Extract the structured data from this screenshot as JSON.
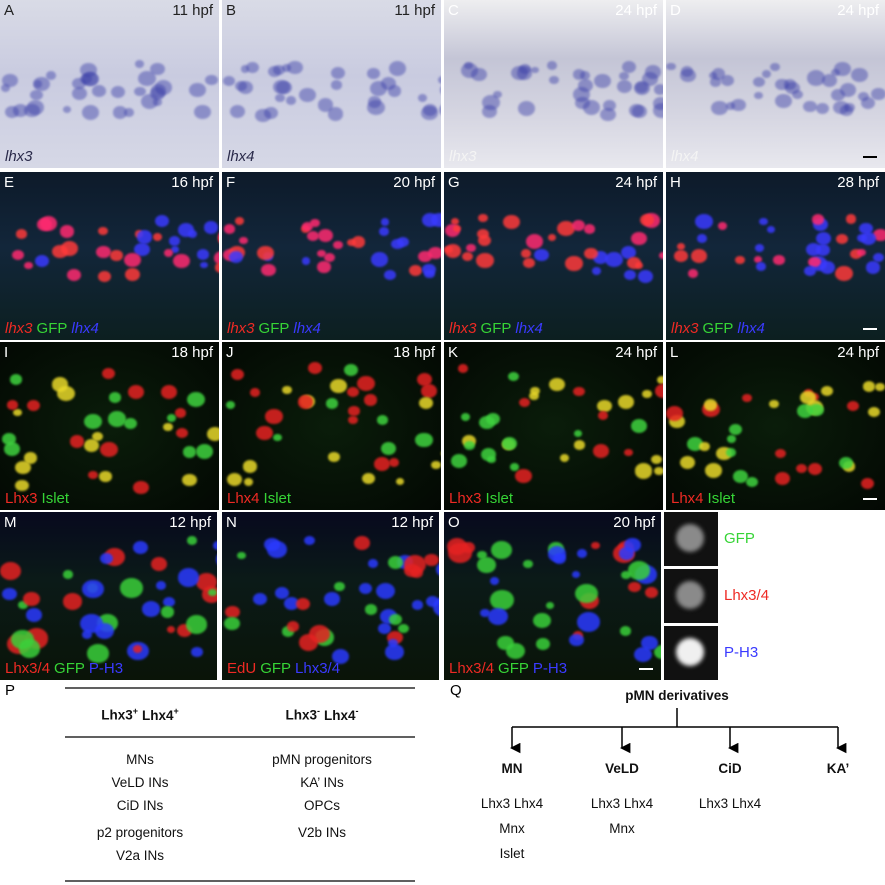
{
  "panels": [
    {
      "letter": "A",
      "time": "11 hpf",
      "caption": [
        {
          "text": "lhx3",
          "color": "dark",
          "italic": true
        }
      ]
    },
    {
      "letter": "B",
      "time": "11 hpf",
      "caption": [
        {
          "text": "lhx4",
          "color": "dark",
          "italic": true
        }
      ]
    },
    {
      "letter": "C",
      "time": "24 hpf",
      "caption": [
        {
          "text": "lhx3",
          "color": "light",
          "italic": true
        }
      ]
    },
    {
      "letter": "D",
      "time": "24 hpf",
      "caption": [
        {
          "text": "lhx4",
          "color": "light",
          "italic": true
        }
      ],
      "scale_bar": true
    },
    {
      "letter": "E",
      "time": "16 hpf",
      "caption": [
        {
          "text": "lhx3",
          "color": "red",
          "italic": true
        },
        {
          "text": "GFP",
          "color": "green",
          "italic": false
        },
        {
          "text": "lhx4",
          "color": "blue",
          "italic": true
        }
      ]
    },
    {
      "letter": "F",
      "time": "20 hpf",
      "caption": [
        {
          "text": "lhx3",
          "color": "red",
          "italic": true
        },
        {
          "text": "GFP",
          "color": "green",
          "italic": false
        },
        {
          "text": "lhx4",
          "color": "blue",
          "italic": true
        }
      ]
    },
    {
      "letter": "G",
      "time": "24 hpf",
      "caption": [
        {
          "text": "lhx3",
          "color": "red",
          "italic": true
        },
        {
          "text": "GFP",
          "color": "green",
          "italic": false
        },
        {
          "text": "lhx4",
          "color": "blue",
          "italic": true
        }
      ]
    },
    {
      "letter": "H",
      "time": "28 hpf",
      "caption": [
        {
          "text": "lhx3",
          "color": "red",
          "italic": true
        },
        {
          "text": "GFP",
          "color": "green",
          "italic": false
        },
        {
          "text": "lhx4",
          "color": "blue",
          "italic": true
        }
      ],
      "scale_bar": true
    },
    {
      "letter": "I",
      "time": "18 hpf",
      "caption": [
        {
          "text": "Lhx3",
          "color": "red",
          "italic": false
        },
        {
          "text": "Islet",
          "color": "green",
          "italic": false
        }
      ]
    },
    {
      "letter": "J",
      "time": "18 hpf",
      "caption": [
        {
          "text": "Lhx4",
          "color": "red",
          "italic": false
        },
        {
          "text": "Islet",
          "color": "green",
          "italic": false
        }
      ]
    },
    {
      "letter": "K",
      "time": "24 hpf",
      "caption": [
        {
          "text": "Lhx3",
          "color": "red",
          "italic": false
        },
        {
          "text": "Islet",
          "color": "green",
          "italic": false
        }
      ]
    },
    {
      "letter": "L",
      "time": "24 hpf",
      "caption": [
        {
          "text": "Lhx4",
          "color": "red",
          "italic": false
        },
        {
          "text": "Islet",
          "color": "green",
          "italic": false
        }
      ],
      "scale_bar": true
    },
    {
      "letter": "M",
      "time": "12 hpf",
      "caption": [
        {
          "text": "Lhx3/4",
          "color": "red",
          "italic": false
        },
        {
          "text": "GFP",
          "color": "green",
          "italic": false
        },
        {
          "text": "P-H3",
          "color": "blue",
          "italic": false
        }
      ]
    },
    {
      "letter": "N",
      "time": "12 hpf",
      "caption": [
        {
          "text": "EdU",
          "color": "red",
          "italic": false
        },
        {
          "text": "GFP",
          "color": "green",
          "italic": false
        },
        {
          "text": "Lhx3/4",
          "color": "blue",
          "italic": false
        }
      ]
    },
    {
      "letter": "O",
      "time": "20 hpf",
      "caption": [
        {
          "text": "Lhx3/4",
          "color": "red",
          "italic": false
        },
        {
          "text": "GFP",
          "color": "green",
          "italic": false
        },
        {
          "text": "P-H3",
          "color": "blue",
          "italic": false
        }
      ],
      "scale_bar": true
    }
  ],
  "insets": [
    {
      "label": "GFP",
      "color": "green"
    },
    {
      "label": "Lhx3/4",
      "color": "red"
    },
    {
      "label": "P-H3",
      "color": "blue"
    }
  ],
  "table": {
    "label": "P",
    "header": [
      [
        {
          "text": "Lhx3",
          "sup": "+"
        },
        {
          "text": "Lhx4",
          "sup": "+"
        }
      ],
      [
        {
          "text": "Lhx3",
          "sup": "-"
        },
        {
          "text": "Lhx4",
          "sup": "-"
        }
      ]
    ],
    "columns": [
      [
        "MNs",
        "VeLD INs",
        "CiD INs",
        "p2 progenitors",
        "V2a INs"
      ],
      [
        "pMN progenitors",
        "KA’ INs",
        "OPCs",
        "V2b INs"
      ]
    ]
  },
  "diagram": {
    "label": "Q",
    "root": "pMN derivatives",
    "nodes": [
      {
        "label": "MN",
        "markers": [
          "Lhx3 Lhx4",
          "Mnx",
          "Islet"
        ]
      },
      {
        "label": "VeLD",
        "markers": [
          "Lhx3 Lhx4",
          "Mnx"
        ]
      },
      {
        "label": "CiD",
        "markers": [
          "Lhx3 Lhx4"
        ]
      },
      {
        "label": "KA’",
        "markers": []
      }
    ]
  }
}
